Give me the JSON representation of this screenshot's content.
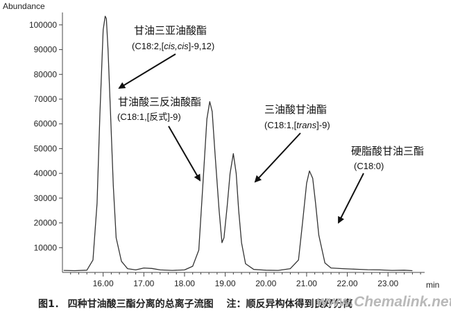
{
  "chart_data": {
    "type": "line",
    "title": "",
    "ylabel": "Abundance",
    "xlabel": "min",
    "xlim": [
      15.0,
      23.9
    ],
    "ylim": [
      0,
      105000
    ],
    "x_ticks": [
      16.0,
      17.0,
      18.0,
      19.0,
      20.0,
      21.0,
      22.0,
      23.0
    ],
    "x_tick_labels": [
      "16.00",
      "17.00",
      "18.00",
      "19.00",
      "20.00",
      "21.00",
      "22.00",
      "23.00"
    ],
    "y_ticks": [
      10000,
      20000,
      30000,
      40000,
      50000,
      60000,
      70000,
      80000,
      90000,
      100000
    ],
    "y_tick_labels": [
      "10000",
      "20000",
      "30000",
      "40000",
      "50000",
      "60000",
      "70000",
      "80000",
      "90000",
      "100000"
    ],
    "grid": false,
    "line_color": "#333333",
    "series": [
      {
        "x": [
          15.03,
          15.3,
          15.6,
          15.75,
          15.85,
          15.92,
          16.0,
          16.05,
          16.08,
          16.12,
          16.18,
          16.25,
          16.32,
          16.45,
          16.6,
          16.8,
          17.0,
          17.2,
          17.4,
          17.7,
          18.0,
          18.2,
          18.35,
          18.45,
          18.55,
          18.62,
          18.68,
          18.75,
          18.85,
          18.92,
          18.97,
          19.05,
          19.12,
          19.2,
          19.27,
          19.33,
          19.4,
          19.5,
          19.7,
          20.0,
          20.3,
          20.6,
          20.8,
          20.9,
          21.0,
          21.07,
          21.15,
          21.22,
          21.3,
          21.45,
          21.6,
          21.9,
          22.2,
          22.5,
          22.8,
          23.1,
          23.4,
          23.6
        ],
        "y": [
          800,
          700,
          900,
          5000,
          28000,
          64000,
          98000,
          103500,
          102500,
          90000,
          65000,
          35000,
          14000,
          4500,
          1500,
          1000,
          1800,
          1600,
          1000,
          800,
          1000,
          2500,
          9000,
          35000,
          62000,
          69000,
          65000,
          48000,
          25000,
          12000,
          14000,
          27000,
          40000,
          48000,
          40000,
          25000,
          12000,
          3500,
          1200,
          900,
          800,
          1500,
          5000,
          20000,
          36000,
          41000,
          38000,
          28000,
          15000,
          3800,
          1800,
          1500,
          1300,
          1100,
          1000,
          800,
          900,
          700
        ]
      }
    ],
    "annotations": [
      {
        "name": "甘油三亚油酸酯",
        "formula": [
          "(C18:2,[",
          "cis,cis",
          "]-9,12)"
        ]
      },
      {
        "name": "甘油酸三反油酸酯",
        "formula": [
          "(C18:1,[反式]-9)"
        ]
      },
      {
        "name": "三油酸甘油酯",
        "formula": [
          "(C18:1,[",
          "trans",
          "]-9)"
        ]
      },
      {
        "name": "硬脂酸甘油三酯",
        "formula": [
          "(C18:0)"
        ]
      }
    ]
  },
  "caption": "图1． 四种甘油酸三酯分离的总离子流图　 注：顺反异构体得到良好分离",
  "watermark": "www.Chemalink.net"
}
